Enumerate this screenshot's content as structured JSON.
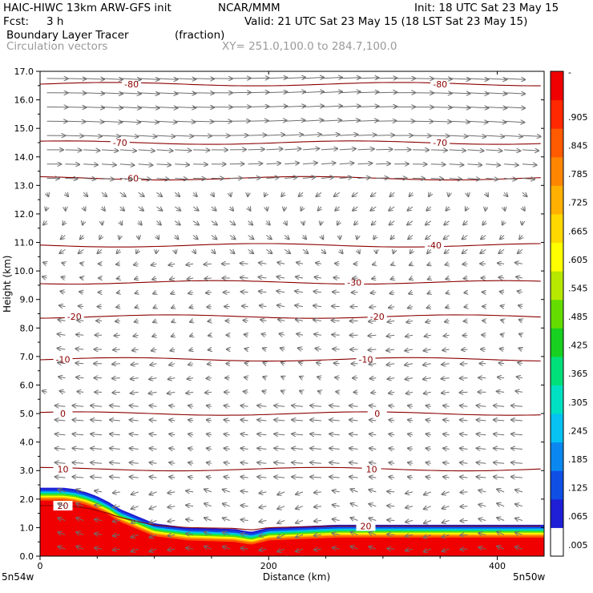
{
  "header": {
    "model_line": "HAIC-HIWC 13km ARW-GFS init",
    "org": "NCAR/MMM",
    "init": "Init: 18 UTC Sat 23 May 15",
    "fcst_label": "Fcst:",
    "fcst_value": "3 h",
    "valid": "Valid: 21 UTC Sat 23 May 15 (18 LST Sat 23 May 15)",
    "field": "Boundary Layer Tracer",
    "units": "(fraction)",
    "vectors": "Circulation vectors",
    "xy": "XY= 251.0,100.0 to 284.7,100.0"
  },
  "chart_data": {
    "type": "heatmap",
    "xlabel": "Distance (km)",
    "ylabel": "Height (km)",
    "xlim": [
      0,
      441
    ],
    "ylim": [
      0,
      17
    ],
    "x_ticks": [
      {
        "value": 0,
        "label": "0"
      },
      {
        "value": 200,
        "label": "200"
      },
      {
        "value": 400,
        "label": "400"
      }
    ],
    "x_edge_labels": {
      "left": "5n54w",
      "right": "5n50w"
    },
    "y_ticks": [
      "0.0",
      "1.0",
      "2.0",
      "3.0",
      "4.0",
      "5.0",
      "6.0",
      "7.0",
      "8.0",
      "9.0",
      "10.0",
      "11.0",
      "12.0",
      "13.0",
      "14.0",
      "15.0",
      "16.0",
      "17.0"
    ],
    "colorbar": {
      "min": 0,
      "max": 1,
      "tick_labels": [
        ".005",
        ".065",
        ".125",
        ".185",
        ".245",
        ".305",
        ".365",
        ".425",
        ".485",
        ".545",
        ".605",
        ".665",
        ".725",
        ".785",
        ".845",
        ".905"
      ],
      "top_label": "-",
      "colors": [
        "#ffffff",
        "#1f1fd6",
        "#0f4fe6",
        "#0a88f0",
        "#05c2f2",
        "#00e0c2",
        "#00e07a",
        "#18d020",
        "#64dc00",
        "#b6e800",
        "#ffff00",
        "#ffd800",
        "#ffb000",
        "#ff8600",
        "#ff5a00",
        "#ff2800",
        "#f00000"
      ]
    },
    "tracer_top_km": [
      {
        "x": 0,
        "top": 2.4
      },
      {
        "x": 20,
        "top": 2.4
      },
      {
        "x": 30,
        "top": 2.35
      },
      {
        "x": 40,
        "top": 2.25
      },
      {
        "x": 50,
        "top": 2.1
      },
      {
        "x": 60,
        "top": 1.9
      },
      {
        "x": 70,
        "top": 1.65
      },
      {
        "x": 85,
        "top": 1.4
      },
      {
        "x": 100,
        "top": 1.15
      },
      {
        "x": 130,
        "top": 1.0
      },
      {
        "x": 170,
        "top": 0.95
      },
      {
        "x": 185,
        "top": 0.85
      },
      {
        "x": 200,
        "top": 1.0
      },
      {
        "x": 260,
        "top": 1.1
      },
      {
        "x": 441,
        "top": 1.1
      }
    ],
    "temperature_contours": [
      {
        "value": -80,
        "label": "-80",
        "height": 16.55,
        "label_x": [
          80,
          350
        ]
      },
      {
        "value": -70,
        "label": "-70",
        "height": 14.5,
        "label_x": [
          70,
          350
        ]
      },
      {
        "value": -60,
        "label": "-60",
        "height": 13.25,
        "label_x": [
          80
        ]
      },
      {
        "value": -40,
        "label": "-40",
        "height": 10.9,
        "label_x": [
          345
        ]
      },
      {
        "value": -30,
        "label": "-30",
        "height": 9.6,
        "label_x": [
          275
        ]
      },
      {
        "value": -20,
        "label": "-20",
        "height": 8.4,
        "label_x": [
          30,
          295
        ]
      },
      {
        "value": -10,
        "label": "-10",
        "height": 6.9,
        "label_x": [
          20,
          285
        ]
      },
      {
        "value": 0,
        "label": "0",
        "height": 5.0,
        "label_x": [
          20,
          295
        ]
      },
      {
        "value": 10,
        "label": "10",
        "height": 3.05,
        "label_x": [
          20,
          290
        ]
      },
      {
        "value": 20,
        "label": "20",
        "height": 1.05,
        "label_x": [
          20,
          285
        ]
      }
    ]
  },
  "colors": {
    "contour": "#8b0000",
    "vector": "#6e6e6e",
    "header_secondary": "#9a9a9a"
  }
}
